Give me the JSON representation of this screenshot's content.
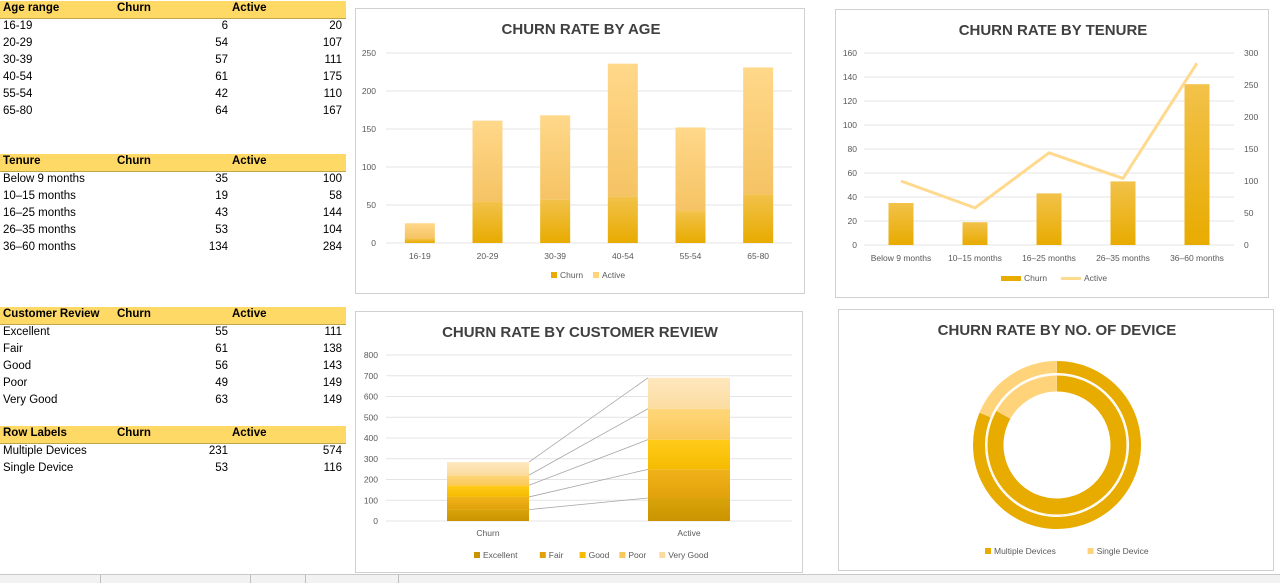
{
  "colors": {
    "header_fill": "#ffd966",
    "churn": "#e8ab00",
    "active": "#ffd37a",
    "title": "#404040"
  },
  "tables": {
    "age": {
      "h1": "Age range",
      "h2": "Churn",
      "h3": "Active",
      "rows": [
        {
          "label": "16-19",
          "churn": "6",
          "active": "20"
        },
        {
          "label": "20-29",
          "churn": "54",
          "active": "107"
        },
        {
          "label": "30-39",
          "churn": "57",
          "active": "111"
        },
        {
          "label": "40-54",
          "churn": "61",
          "active": "175"
        },
        {
          "label": "55-54",
          "churn": "42",
          "active": "110"
        },
        {
          "label": "65-80",
          "churn": "64",
          "active": "167"
        }
      ]
    },
    "tenure": {
      "h1": "Tenure",
      "h2": "Churn",
      "h3": "Active",
      "rows": [
        {
          "label": "Below 9 months",
          "churn": "35",
          "active": "100"
        },
        {
          "label": "10–15 months",
          "churn": "19",
          "active": "58"
        },
        {
          "label": "16–25 months",
          "churn": "43",
          "active": "144"
        },
        {
          "label": "26–35 months",
          "churn": "53",
          "active": "104"
        },
        {
          "label": "36–60 months",
          "churn": "134",
          "active": "284"
        }
      ]
    },
    "review": {
      "h1": "Customer Review",
      "h2": "Churn",
      "h3": "Active",
      "rows": [
        {
          "label": "Excellent",
          "churn": "55",
          "active": "111"
        },
        {
          "label": "Fair",
          "churn": "61",
          "active": "138"
        },
        {
          "label": "Good",
          "churn": "56",
          "active": "143"
        },
        {
          "label": "Poor",
          "churn": "49",
          "active": "149"
        },
        {
          "label": "Very Good",
          "churn": "63",
          "active": "149"
        }
      ]
    },
    "device": {
      "h1": "Row Labels",
      "h2": "Churn",
      "h3": "Active",
      "rows": [
        {
          "label": "Multiple Devices",
          "churn": "231",
          "active": "574"
        },
        {
          "label": "Single Device",
          "churn": "53",
          "active": "116"
        }
      ]
    }
  },
  "chart_data": [
    {
      "id": "age",
      "type": "bar",
      "title": "CHURN RATE BY AGE",
      "categories": [
        "16-19",
        "20-29",
        "30-39",
        "40-54",
        "55-54",
        "65-80"
      ],
      "series": [
        {
          "name": "Churn",
          "values": [
            6,
            54,
            57,
            61,
            42,
            64
          ]
        },
        {
          "name": "Active",
          "values": [
            20,
            107,
            111,
            175,
            110,
            167
          ]
        }
      ],
      "stacked": true,
      "ylim": [
        0,
        250
      ],
      "yticks": [
        0,
        50,
        100,
        150,
        200,
        250
      ],
      "legend": "bottom",
      "grid": true
    },
    {
      "id": "tenure",
      "type": "bar",
      "title": "CHURN RATE BY TENURE",
      "categories": [
        "Below 9 months",
        "10–15 months",
        "16–25 months",
        "26–35 months",
        "36–60 months"
      ],
      "series": [
        {
          "name": "Churn",
          "type": "bar",
          "axis": "left",
          "values": [
            35,
            19,
            43,
            53,
            134
          ]
        },
        {
          "name": "Active",
          "type": "line",
          "axis": "right",
          "values": [
            100,
            58,
            144,
            104,
            284
          ]
        }
      ],
      "ylim": [
        0,
        160
      ],
      "yticks": [
        0,
        20,
        40,
        60,
        80,
        100,
        120,
        140,
        160
      ],
      "y2lim": [
        0,
        300
      ],
      "y2ticks": [
        0,
        50,
        100,
        150,
        200,
        250,
        300
      ],
      "legend": "bottom",
      "grid": true
    },
    {
      "id": "review",
      "type": "bar",
      "title": "CHURN RATE BY CUSTOMER REVIEW",
      "categories": [
        "Churn",
        "Active"
      ],
      "series": [
        {
          "name": "Excellent",
          "values": [
            55,
            111
          ]
        },
        {
          "name": "Fair",
          "values": [
            61,
            138
          ]
        },
        {
          "name": "Good",
          "values": [
            56,
            143
          ]
        },
        {
          "name": "Poor",
          "values": [
            49,
            149
          ]
        },
        {
          "name": "Very Good",
          "values": [
            63,
            149
          ]
        }
      ],
      "stacked": true,
      "series_lines": true,
      "ylim": [
        0,
        800
      ],
      "yticks": [
        0,
        100,
        200,
        300,
        400,
        500,
        600,
        700,
        800
      ],
      "legend": "bottom",
      "grid": true
    },
    {
      "id": "device",
      "type": "pie",
      "title": "CHURN RATE BY NO. OF DEVICE",
      "categories": [
        "Multiple Devices",
        "Single Device"
      ],
      "rings": [
        {
          "name": "Churn",
          "values": [
            231,
            53
          ]
        },
        {
          "name": "Active",
          "values": [
            574,
            116
          ]
        }
      ],
      "legend": "bottom"
    }
  ]
}
